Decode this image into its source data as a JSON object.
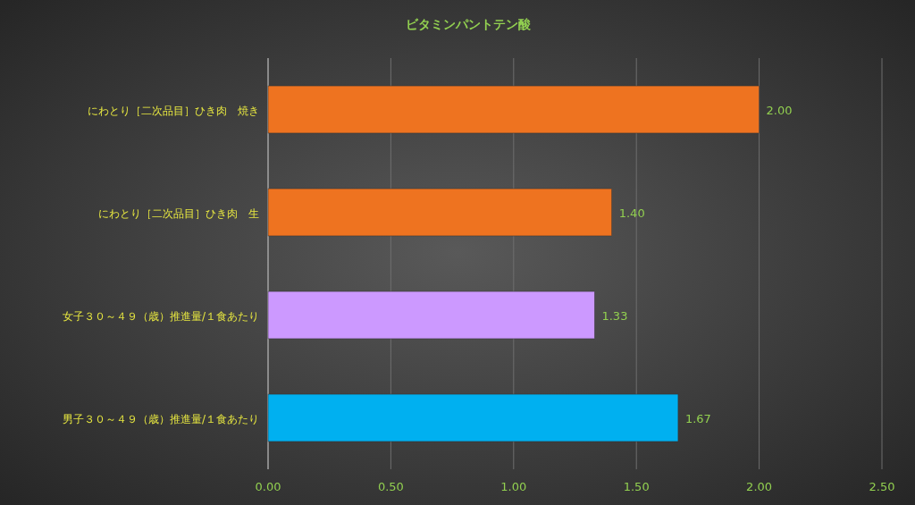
{
  "chart_data": {
    "type": "bar",
    "orientation": "horizontal",
    "title": "ビタミンパントテン酸",
    "categories": [
      "にわとり［二次品目］ひき肉　焼き",
      "にわとり［二次品目］ひき肉　生",
      "女子３０～４９（歳）推進量/１食あたり",
      "男子３０～４９（歳）推進量/１食あたり"
    ],
    "values": [
      2.0,
      1.4,
      1.33,
      1.67
    ],
    "colors": [
      "#ee7320",
      "#ee7320",
      "#cc99ff",
      "#00b0f0"
    ],
    "value_labels": [
      "2.00",
      "1.40",
      "1.33",
      "1.67"
    ],
    "xlim": [
      0,
      2.5
    ],
    "xticks": [
      {
        "value": 0,
        "label": "0.00"
      },
      {
        "value": 0.5,
        "label": "0.50"
      },
      {
        "value": 1,
        "label": "1.00"
      },
      {
        "value": 1.5,
        "label": "1.50"
      },
      {
        "value": 2,
        "label": "2.00"
      },
      {
        "value": 2.5,
        "label": "2.50"
      }
    ],
    "grid": "x"
  }
}
